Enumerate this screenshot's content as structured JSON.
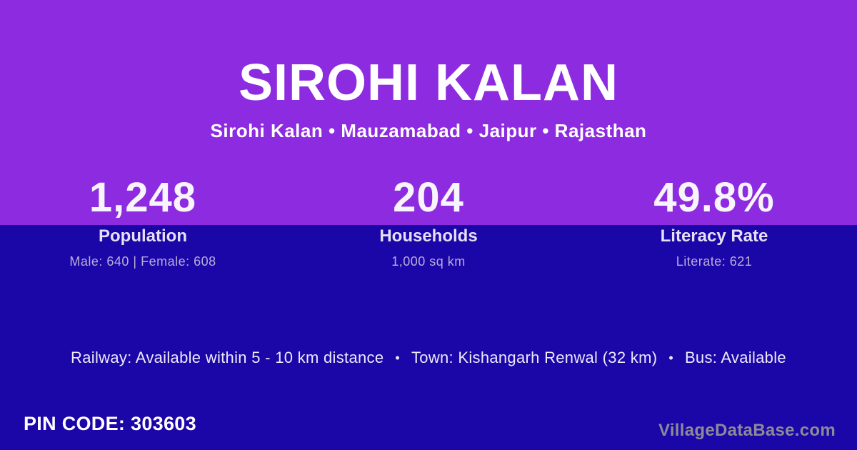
{
  "header": {
    "title": "SIROHI KALAN",
    "breadcrumb": "Sirohi Kalan • Mauzamabad • Jaipur • Rajasthan"
  },
  "stats": [
    {
      "value": "1,248",
      "label": "Population",
      "detail": "Male: 640 | Female: 608"
    },
    {
      "value": "204",
      "label": "Households",
      "detail": "1,000 sq km"
    },
    {
      "value": "49.8%",
      "label": "Literacy Rate",
      "detail": "Literate: 621"
    }
  ],
  "transport": {
    "separator": "•",
    "items": [
      "Railway: Available within 5 - 10 km distance",
      "Town: Kishangarh Renwal (32 km)",
      "Bus: Available"
    ]
  },
  "footer": {
    "pin_label": "PIN CODE:",
    "pin_value": "303603",
    "watermark": "VillageDataBase.com"
  },
  "colors": {
    "top_background": "#8C2BE0",
    "bottom_background": "#1B06A8",
    "text_primary": "#FFFFFF",
    "text_muted": "#B9AEDC",
    "watermark": "#8B8B98"
  }
}
